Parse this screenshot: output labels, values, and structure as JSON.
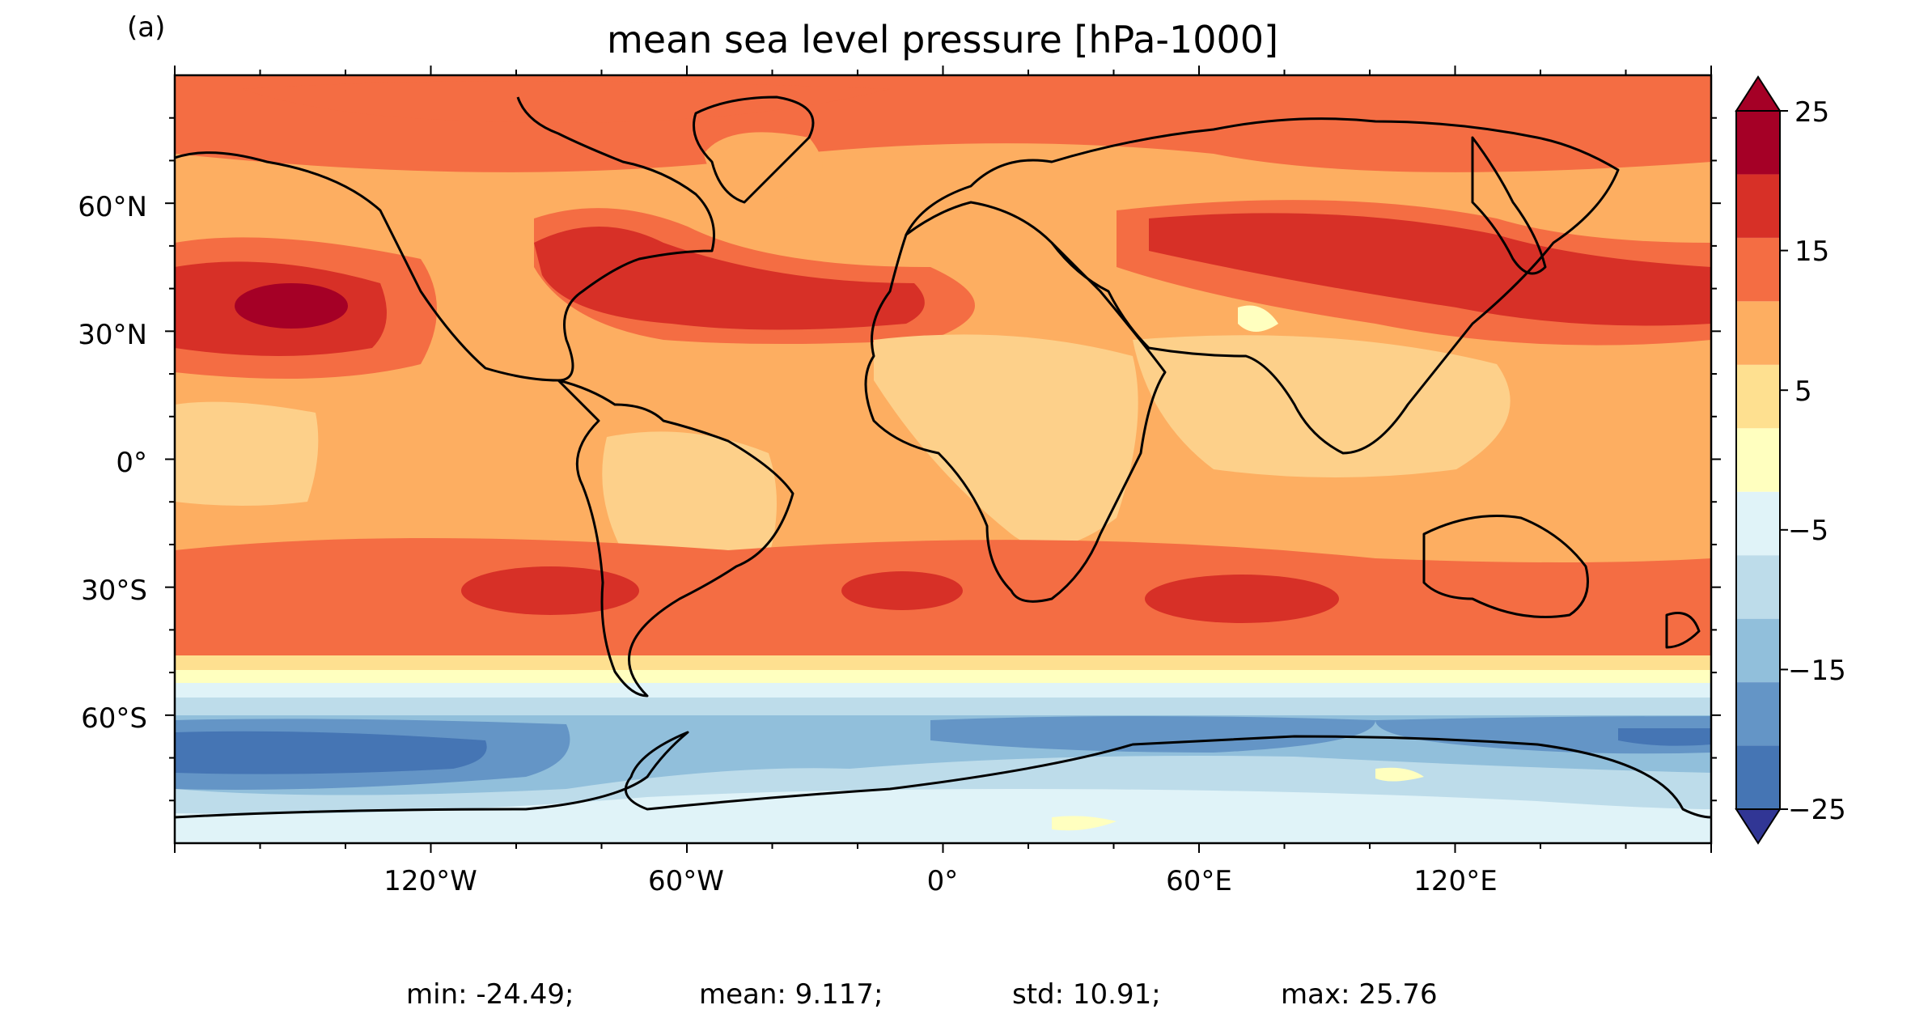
{
  "panel_label": "(a)",
  "title": "mean sea level pressure [hPa-1000]",
  "x_ticks": [
    "120°W",
    "60°W",
    "0°",
    "60°E",
    "120°E"
  ],
  "y_ticks": [
    "60°N",
    "30°N",
    "0°",
    "30°S",
    "60°S"
  ],
  "colorbar": {
    "tick_labels": [
      "25",
      "15",
      "5",
      "−5",
      "−15",
      "−25"
    ],
    "levels": [
      -25,
      -20,
      -15,
      -10,
      -5,
      0,
      5,
      10,
      15,
      20,
      25
    ],
    "colors": [
      "#4575b4",
      "#6495c6",
      "#91bfdb",
      "#bddcea",
      "#e0f3f8",
      "#ffffbf",
      "#fee090",
      "#fdae61",
      "#f46d43",
      "#d73027",
      "#a50026"
    ],
    "extend_low_color": "#313695",
    "extend_high_color": "#a50026"
  },
  "stats": {
    "min": "min: -24.49;",
    "mean": "mean: 9.117;",
    "std": "std: 10.91;",
    "max": "max: 25.76"
  }
}
